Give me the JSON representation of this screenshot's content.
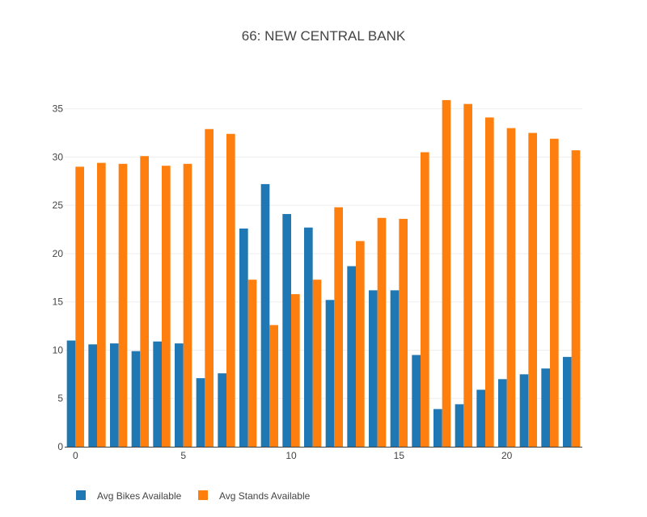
{
  "chart_data": {
    "type": "bar",
    "title": "66: NEW CENTRAL BANK",
    "xlabel": "",
    "ylabel": "",
    "x": [
      0,
      1,
      2,
      3,
      4,
      5,
      6,
      7,
      8,
      9,
      10,
      11,
      12,
      13,
      14,
      15,
      16,
      17,
      18,
      19,
      20,
      21,
      22,
      23
    ],
    "xticks": [
      0,
      5,
      10,
      15,
      20
    ],
    "yticks": [
      0,
      5,
      10,
      15,
      20,
      25,
      30,
      35
    ],
    "ylim": [
      0,
      37.9
    ],
    "grid": true,
    "legend_position": "bottom-left",
    "series": [
      {
        "name": "Avg Bikes Available",
        "color": "#1f77b4",
        "values": [
          11.0,
          10.6,
          10.7,
          9.9,
          10.9,
          10.7,
          7.1,
          7.6,
          22.6,
          27.2,
          24.1,
          22.7,
          15.2,
          18.7,
          16.2,
          16.2,
          9.5,
          3.9,
          4.4,
          5.9,
          7.0,
          7.5,
          8.1,
          9.3
        ]
      },
      {
        "name": "Avg Stands Available",
        "color": "#ff7f0e",
        "values": [
          29.0,
          29.4,
          29.3,
          30.1,
          29.1,
          29.3,
          32.9,
          32.4,
          17.3,
          12.6,
          15.8,
          17.3,
          24.8,
          21.3,
          23.7,
          23.6,
          30.5,
          35.9,
          35.5,
          34.1,
          33.0,
          32.5,
          31.9,
          30.7
        ]
      }
    ]
  }
}
